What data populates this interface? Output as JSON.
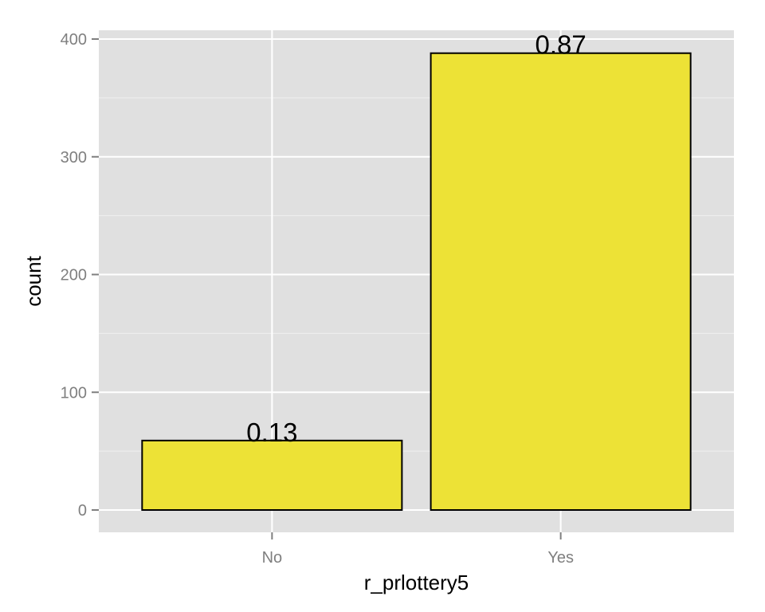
{
  "chart_data": {
    "type": "bar",
    "categories": [
      "No",
      "Yes"
    ],
    "values": [
      59,
      388
    ],
    "data_labels": [
      "0.13",
      "0.87"
    ],
    "xlabel": "r_prlottery5",
    "ylabel": "count",
    "ylim": [
      0,
      400
    ],
    "yticks": [
      "0",
      "100",
      "200",
      "300",
      "400"
    ],
    "grid": true,
    "colors": {
      "bar_fill": "#ede236",
      "bar_stroke": "#000000",
      "panel_bg": "#e0e0e0",
      "grid_major": "#ffffff",
      "grid_minor": "#f0f0f0",
      "tick_label": "#7f7f7f"
    }
  }
}
